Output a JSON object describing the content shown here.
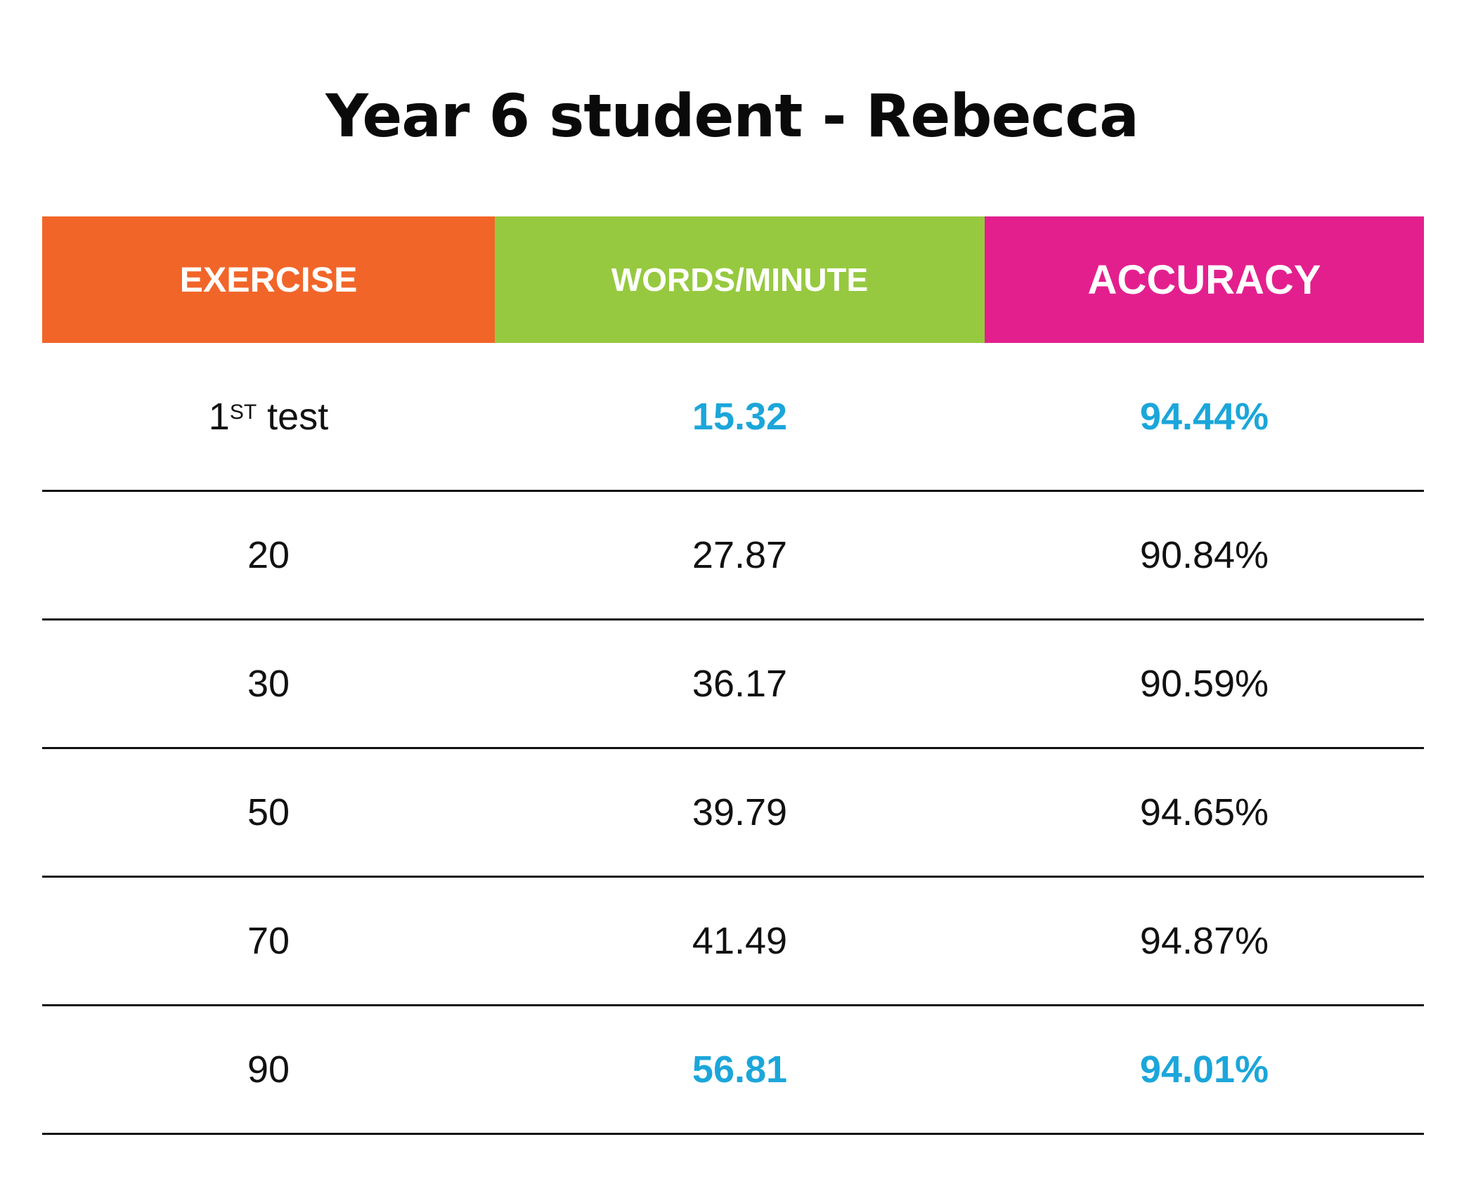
{
  "title": "Year 6 student - Rebecca",
  "colors": {
    "exercise_header": "#F26529",
    "wpm_header": "#96C93F",
    "accuracy_header": "#E31F8E",
    "highlight_value": "#1BA6DA",
    "text": "#111111"
  },
  "headers": [
    "EXERCISE",
    "WORDS/MINUTE",
    "ACCURACY"
  ],
  "first_row": {
    "exercise_number": "1",
    "exercise_sup": "ST",
    "exercise_suffix": " test",
    "wpm": "15.32",
    "accuracy": "94.44%"
  },
  "chart_data": {
    "type": "table",
    "title": "Year 6 student - Rebecca",
    "columns": [
      "EXERCISE",
      "WORDS/MINUTE",
      "ACCURACY"
    ],
    "rows": [
      [
        "1ST test",
        "15.32",
        "94.44%"
      ],
      [
        "20",
        "27.87",
        "90.84%"
      ],
      [
        "30",
        "36.17",
        "90.59%"
      ],
      [
        "50",
        "39.79",
        "94.65%"
      ],
      [
        "70",
        "41.49",
        "94.87%"
      ],
      [
        "90",
        "56.81",
        "94.01%"
      ]
    ],
    "highlighted_rows": [
      0,
      5
    ]
  }
}
